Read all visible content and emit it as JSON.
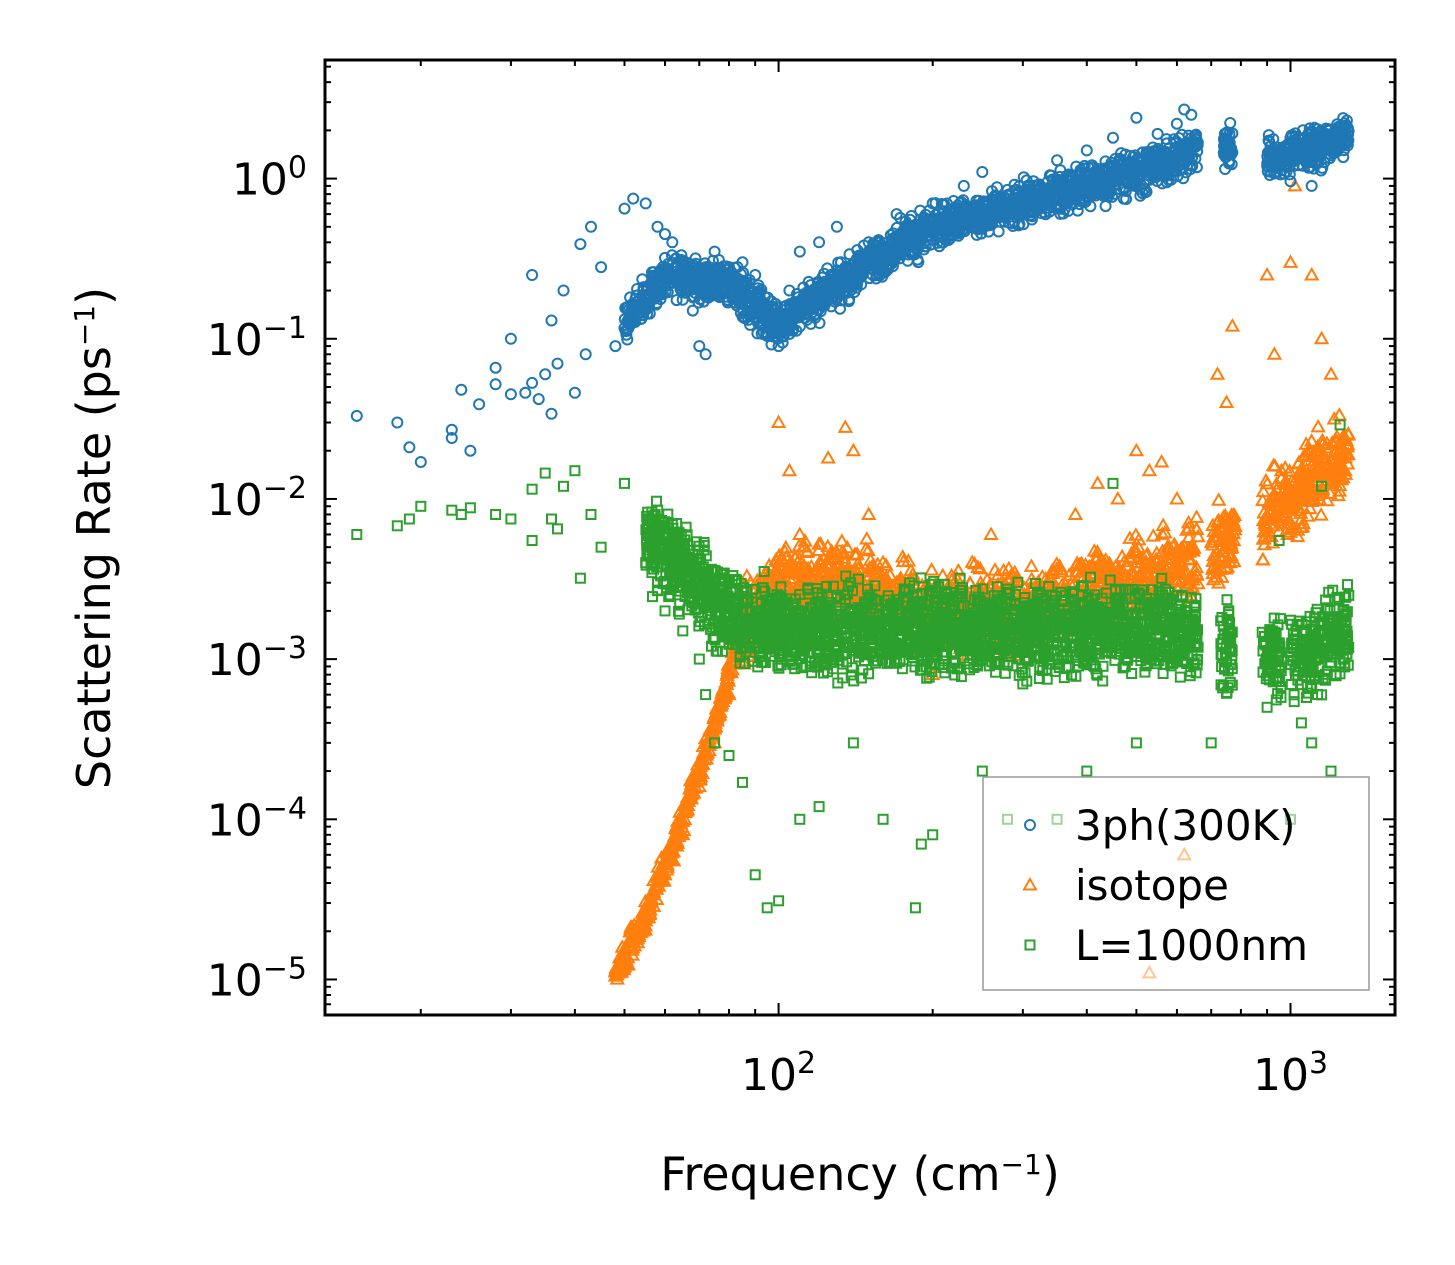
{
  "chart_data": {
    "type": "scatter",
    "xscale": "log",
    "yscale": "log",
    "xlim": [
      13,
      1600
    ],
    "ylim": [
      6e-06,
      5.5
    ],
    "xlabel": "Frequency (cm",
    "xlabel_sup": "−1",
    "xlabel_end": ")",
    "ylabel": "Scattering Rate (ps",
    "ylabel_sup": "−1",
    "ylabel_end": ")",
    "x_ticks": [
      {
        "value": 100,
        "base": "10",
        "exp": "2"
      },
      {
        "value": 1000,
        "base": "10",
        "exp": "3"
      }
    ],
    "y_ticks": [
      {
        "value": 1,
        "base": "10",
        "exp": "0"
      },
      {
        "value": 0.1,
        "base": "10",
        "exp": "−1"
      },
      {
        "value": 0.01,
        "base": "10",
        "exp": "−2"
      },
      {
        "value": 0.001,
        "base": "10",
        "exp": "−3"
      },
      {
        "value": 0.0001,
        "base": "10",
        "exp": "−4"
      },
      {
        "value": 1e-05,
        "base": "10",
        "exp": "−5"
      }
    ],
    "legend_position": "bottom-right",
    "series": [
      {
        "name": "3ph(300K)",
        "marker": "circle",
        "color": "#1f77b4",
        "trend": [
          [
            20,
            0.02
          ],
          [
            30,
            0.045
          ],
          [
            40,
            0.06
          ],
          [
            50,
            0.12
          ],
          [
            60,
            0.25
          ],
          [
            80,
            0.22
          ],
          [
            100,
            0.12
          ],
          [
            150,
            0.3
          ],
          [
            200,
            0.5
          ],
          [
            300,
            0.7
          ],
          [
            500,
            1.1
          ],
          [
            650,
            1.5
          ],
          [
            750,
            1.6
          ],
          [
            950,
            1.3
          ],
          [
            1100,
            1.5
          ],
          [
            1300,
            1.9
          ]
        ],
        "points": [
          [
            15,
            0.033
          ],
          [
            18,
            0.03
          ],
          [
            19,
            0.021
          ],
          [
            20,
            0.017
          ],
          [
            23,
            0.027
          ],
          [
            23,
            0.024
          ],
          [
            24,
            0.048
          ],
          [
            25,
            0.02
          ],
          [
            26,
            0.039
          ],
          [
            28,
            0.066
          ],
          [
            28,
            0.052
          ],
          [
            30,
            0.045
          ],
          [
            30,
            0.1
          ],
          [
            32,
            0.046
          ],
          [
            33,
            0.25
          ],
          [
            33,
            0.053
          ],
          [
            34,
            0.042
          ],
          [
            35,
            0.06
          ],
          [
            36,
            0.13
          ],
          [
            36,
            0.034
          ],
          [
            37,
            0.07
          ],
          [
            38,
            0.2
          ],
          [
            40,
            0.046
          ],
          [
            41,
            0.39
          ],
          [
            42,
            0.08
          ],
          [
            43,
            0.5
          ],
          [
            45,
            0.28
          ],
          [
            48,
            0.09
          ],
          [
            50,
            0.65
          ],
          [
            52,
            0.75
          ],
          [
            55,
            0.7
          ],
          [
            58,
            0.5
          ],
          [
            60,
            0.45
          ],
          [
            62,
            0.4
          ],
          [
            65,
            0.3
          ],
          [
            68,
            0.15
          ],
          [
            70,
            0.09
          ],
          [
            72,
            0.08
          ],
          [
            75,
            0.35
          ],
          [
            80,
            0.28
          ],
          [
            85,
            0.3
          ],
          [
            90,
            0.25
          ],
          [
            95,
            0.15
          ],
          [
            100,
            0.09
          ],
          [
            102,
            0.12
          ],
          [
            105,
            0.2
          ],
          [
            110,
            0.35
          ],
          [
            120,
            0.4
          ],
          [
            130,
            0.5
          ],
          [
            150,
            0.4
          ],
          [
            170,
            0.6
          ],
          [
            200,
            0.7
          ],
          [
            230,
            0.9
          ],
          [
            250,
            1.1
          ],
          [
            280,
            0.85
          ],
          [
            300,
            0.8
          ],
          [
            320,
            0.9
          ],
          [
            350,
            1.3
          ],
          [
            400,
            1.5
          ],
          [
            450,
            1.8
          ],
          [
            500,
            2.4
          ],
          [
            550,
            1.9
          ],
          [
            600,
            2.2
          ],
          [
            620,
            2.7
          ],
          [
            640,
            2.5
          ],
          [
            760,
            1.9
          ],
          [
            930,
            1.4
          ],
          [
            1000,
            1.8
          ],
          [
            1050,
            1.6
          ],
          [
            1100,
            0.9
          ],
          [
            1150,
            1.7
          ],
          [
            1250,
            2.0
          ]
        ]
      },
      {
        "name": "isotope",
        "marker": "triangle",
        "color": "#ff7f0e",
        "trend": [
          [
            48,
            1.1e-05
          ],
          [
            55,
            2.5e-05
          ],
          [
            65,
            0.0001
          ],
          [
            75,
            0.0004
          ],
          [
            85,
            0.0015
          ],
          [
            100,
            0.003
          ],
          [
            140,
            0.003
          ],
          [
            200,
            0.002
          ],
          [
            300,
            0.002
          ],
          [
            500,
            0.003
          ],
          [
            650,
            0.004
          ],
          [
            1000,
            0.01
          ],
          [
            1300,
            0.02
          ]
        ],
        "points": [
          [
            48,
            1.05e-05
          ],
          [
            50,
            1.2e-05
          ],
          [
            53,
            1.8e-05
          ],
          [
            56,
            2.6e-05
          ],
          [
            60,
            4.5e-05
          ],
          [
            65,
            8e-05
          ],
          [
            70,
            0.00016
          ],
          [
            75,
            0.0003
          ],
          [
            80,
            0.0006
          ],
          [
            90,
            0.002
          ],
          [
            100,
            0.03
          ],
          [
            105,
            0.015
          ],
          [
            110,
            0.006
          ],
          [
            125,
            0.018
          ],
          [
            135,
            0.028
          ],
          [
            140,
            0.02
          ],
          [
            150,
            0.008
          ],
          [
            170,
            0.003
          ],
          [
            200,
            0.0008
          ],
          [
            250,
            0.002
          ],
          [
            260,
            0.006
          ],
          [
            290,
            0.003
          ],
          [
            320,
            0.0025
          ],
          [
            380,
            0.008
          ],
          [
            420,
            0.0125
          ],
          [
            460,
            0.01
          ],
          [
            500,
            0.02
          ],
          [
            530,
            0.015
          ],
          [
            560,
            0.017
          ],
          [
            600,
            0.01
          ],
          [
            720,
            0.06
          ],
          [
            750,
            0.04
          ],
          [
            770,
            0.12
          ],
          [
            900,
            0.25
          ],
          [
            930,
            0.08
          ],
          [
            960,
            0.015
          ],
          [
            1000,
            0.3
          ],
          [
            1020,
            0.9
          ],
          [
            1050,
            0.01
          ],
          [
            1100,
            0.25
          ],
          [
            1150,
            0.1
          ],
          [
            1200,
            0.06
          ],
          [
            1250,
            0.015
          ],
          [
            530,
            1.1e-05
          ],
          [
            620,
            6e-05
          ]
        ]
      },
      {
        "name": "L=1000nm",
        "marker": "square",
        "color": "#2ca02c",
        "trend": [
          [
            15,
            0.006
          ],
          [
            25,
            0.008
          ],
          [
            40,
            0.007
          ],
          [
            60,
            0.005
          ],
          [
            80,
            0.002
          ],
          [
            100,
            0.0015
          ],
          [
            150,
            0.0015
          ],
          [
            300,
            0.0015
          ],
          [
            600,
            0.0015
          ],
          [
            1000,
            0.001
          ],
          [
            1300,
            0.0015
          ]
        ],
        "points": [
          [
            15,
            0.006
          ],
          [
            18,
            0.0068
          ],
          [
            19,
            0.0075
          ],
          [
            20,
            0.009
          ],
          [
            23,
            0.0085
          ],
          [
            24,
            0.008
          ],
          [
            25,
            0.0088
          ],
          [
            28,
            0.008
          ],
          [
            30,
            0.0075
          ],
          [
            33,
            0.0115
          ],
          [
            33,
            0.0055
          ],
          [
            35,
            0.0145
          ],
          [
            36,
            0.0075
          ],
          [
            37,
            0.0065
          ],
          [
            38,
            0.012
          ],
          [
            40,
            0.015
          ],
          [
            41,
            0.0032
          ],
          [
            43,
            0.008
          ],
          [
            45,
            0.005
          ],
          [
            50,
            0.0125
          ],
          [
            55,
            0.004
          ],
          [
            58,
            0.003
          ],
          [
            60,
            0.002
          ],
          [
            65,
            0.0015
          ],
          [
            70,
            0.001
          ],
          [
            72,
            0.0006
          ],
          [
            75,
            0.0003
          ],
          [
            80,
            0.00025
          ],
          [
            85,
            0.00017
          ],
          [
            90,
            4.5e-05
          ],
          [
            95,
            2.8e-05
          ],
          [
            100,
            3.1e-05
          ],
          [
            110,
            0.0001
          ],
          [
            120,
            0.00012
          ],
          [
            140,
            0.0003
          ],
          [
            160,
            0.0001
          ],
          [
            185,
            2.8e-05
          ],
          [
            190,
            7e-05
          ],
          [
            200,
            8e-05
          ],
          [
            250,
            0.0002
          ],
          [
            280,
            0.0001
          ],
          [
            300,
            0.0007
          ],
          [
            350,
            0.0001
          ],
          [
            400,
            0.0002
          ],
          [
            450,
            0.0125
          ],
          [
            500,
            0.0003
          ],
          [
            600,
            0.0025
          ],
          [
            700,
            0.0003
          ],
          [
            760,
            0.0017
          ],
          [
            900,
            0.0005
          ],
          [
            950,
            0.0055
          ],
          [
            1000,
            0.0001
          ],
          [
            1050,
            0.0004
          ],
          [
            1100,
            0.0003
          ],
          [
            1150,
            0.012
          ],
          [
            1200,
            0.0002
          ],
          [
            1250,
            0.029
          ],
          [
            1300,
            0.0025
          ]
        ]
      }
    ]
  }
}
